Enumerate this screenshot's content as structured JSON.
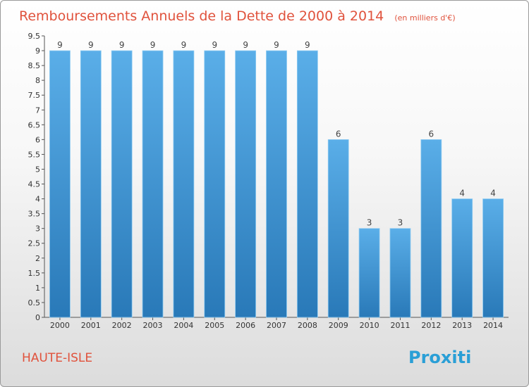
{
  "commune": "HAUTE-ISLE",
  "logo_text": "Proxiti",
  "colors": {
    "bar_top": "#5aaee8",
    "bar_bottom": "#2979b8",
    "title": "#e0523c"
  },
  "chart_data": {
    "type": "bar",
    "title": "Remboursements Annuels de la Dette de 2000 à 2014",
    "subtitle": "(en milliers d'€)",
    "xlabel": "",
    "ylabel": "",
    "categories": [
      "2000",
      "2001",
      "2002",
      "2003",
      "2004",
      "2005",
      "2006",
      "2007",
      "2008",
      "2009",
      "2010",
      "2011",
      "2012",
      "2013",
      "2014"
    ],
    "values": [
      9,
      9,
      9,
      9,
      9,
      9,
      9,
      9,
      9,
      6,
      3,
      3,
      6,
      4,
      4
    ],
    "data_labels": [
      "9",
      "9",
      "9",
      "9",
      "9",
      "9",
      "9",
      "9",
      "9",
      "6",
      "3",
      "3",
      "6",
      "4",
      "4"
    ],
    "ylim": [
      0,
      9.5
    ],
    "yticks": [
      0,
      0.5,
      1,
      1.5,
      2,
      2.5,
      3,
      3.5,
      4,
      4.5,
      5,
      5.5,
      6,
      6.5,
      7,
      7.5,
      8,
      8.5,
      9,
      9.5
    ],
    "ytick_labels": [
      "0",
      "0.5",
      "1",
      "1.5",
      "2",
      "2.5",
      "3",
      "3.5",
      "4",
      "4.5",
      "5",
      "5.5",
      "6",
      "6.5",
      "7",
      "7.5",
      "8",
      "8.5",
      "9",
      "9.5"
    ],
    "grid": false,
    "legend": "none"
  }
}
